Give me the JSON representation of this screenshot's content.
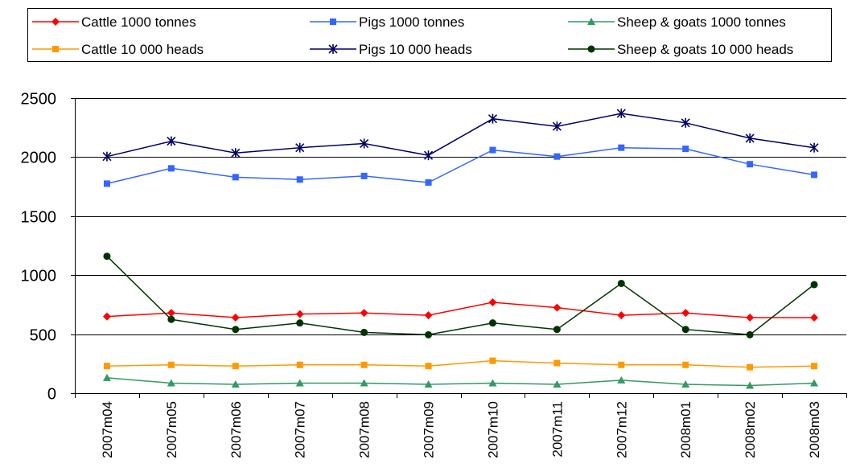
{
  "chart_data": {
    "type": "line",
    "categories": [
      "2007m04",
      "2007m05",
      "2007m06",
      "2007m07",
      "2007m08",
      "2007m09",
      "2007m10",
      "2007m11",
      "2007m12",
      "2008m01",
      "2008m02",
      "2008m03"
    ],
    "ylim": [
      0,
      2500
    ],
    "yticks": [
      0,
      500,
      1000,
      1500,
      2000,
      2500
    ],
    "grid": true,
    "legend_position": "top",
    "series": [
      {
        "name": "Cattle 1000 tonnes",
        "color": "#FF0000",
        "marker": "diamond",
        "values": [
          650,
          680,
          640,
          670,
          680,
          660,
          770,
          725,
          660,
          680,
          640,
          640
        ]
      },
      {
        "name": "Pigs 1000 tonnes",
        "color": "#3366FF",
        "marker": "square",
        "values": [
          1775,
          1905,
          1830,
          1810,
          1840,
          1785,
          2060,
          2005,
          2080,
          2070,
          1940,
          1850
        ]
      },
      {
        "name": "Sheep & goats 1000 tonnes",
        "color": "#339966",
        "marker": "triangle",
        "values": [
          130,
          85,
          75,
          85,
          85,
          75,
          85,
          75,
          110,
          75,
          65,
          85
        ]
      },
      {
        "name": "Cattle 10 000 heads",
        "color": "#FF9900",
        "marker": "square",
        "values": [
          230,
          240,
          230,
          240,
          240,
          230,
          275,
          255,
          240,
          240,
          220,
          230
        ]
      },
      {
        "name": "Pigs 10 000 heads",
        "color": "#000066",
        "marker": "asterisk",
        "values": [
          2005,
          2135,
          2035,
          2080,
          2115,
          2015,
          2325,
          2260,
          2370,
          2290,
          2160,
          2080
        ]
      },
      {
        "name": "Sheep & goats 10 000 heads",
        "color": "#003300",
        "marker": "circle",
        "values": [
          1160,
          625,
          540,
          595,
          515,
          495,
          595,
          540,
          930,
          540,
          495,
          920
        ]
      }
    ]
  }
}
